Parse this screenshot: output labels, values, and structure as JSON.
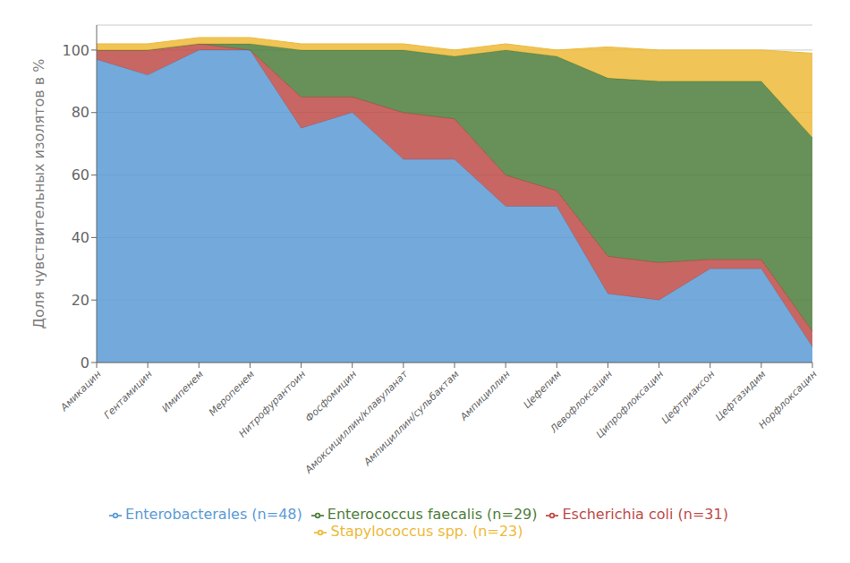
{
  "chart_data": {
    "type": "area",
    "stacked": true,
    "categories": [
      "Амикацин",
      "Гентамицин",
      "Имипенем",
      "Меропенем",
      "Нитрофурантоин",
      "Фосфомицин",
      "Амоксициллин/клавуланат",
      "Ампициллин/сульбактам",
      "Ампициллин",
      "Цефепим",
      "Левофлоксацин",
      "Ципрофлоксацин",
      "Цефтриаксон",
      "Цефтазидим",
      "Норфлоксацин"
    ],
    "series": [
      {
        "name": "Enterobacterales (n=48)",
        "color": "#5B9BD5",
        "values": [
          97,
          92,
          100,
          100,
          75,
          80,
          65,
          65,
          50,
          50,
          22,
          20,
          30,
          30,
          5
        ]
      },
      {
        "name": "Escherichia coli (n=31)",
        "color": "#BE4B48",
        "values": [
          3,
          8,
          2,
          0,
          10,
          5,
          15,
          13,
          10,
          5,
          12,
          12,
          3,
          3,
          5
        ]
      },
      {
        "name": "Enterococcus faecalis (n=29)",
        "color": "#4E7E3C",
        "values": [
          0,
          0,
          0,
          2,
          15,
          15,
          20,
          20,
          40,
          43,
          57,
          58,
          57,
          57,
          62
        ]
      },
      {
        "name": "Stapylococcus spp. (n=23)",
        "color": "#EDBA38",
        "values": [
          2,
          2,
          2,
          2,
          2,
          2,
          2,
          2,
          2,
          2,
          10,
          10,
          10,
          10,
          27
        ]
      }
    ],
    "ylabel": "Доля чувствительных изолятов в %",
    "ylim": [
      0,
      108
    ],
    "yticks": [
      0,
      20,
      40,
      60,
      80,
      100
    ],
    "grid": true,
    "legend": "bottom"
  }
}
